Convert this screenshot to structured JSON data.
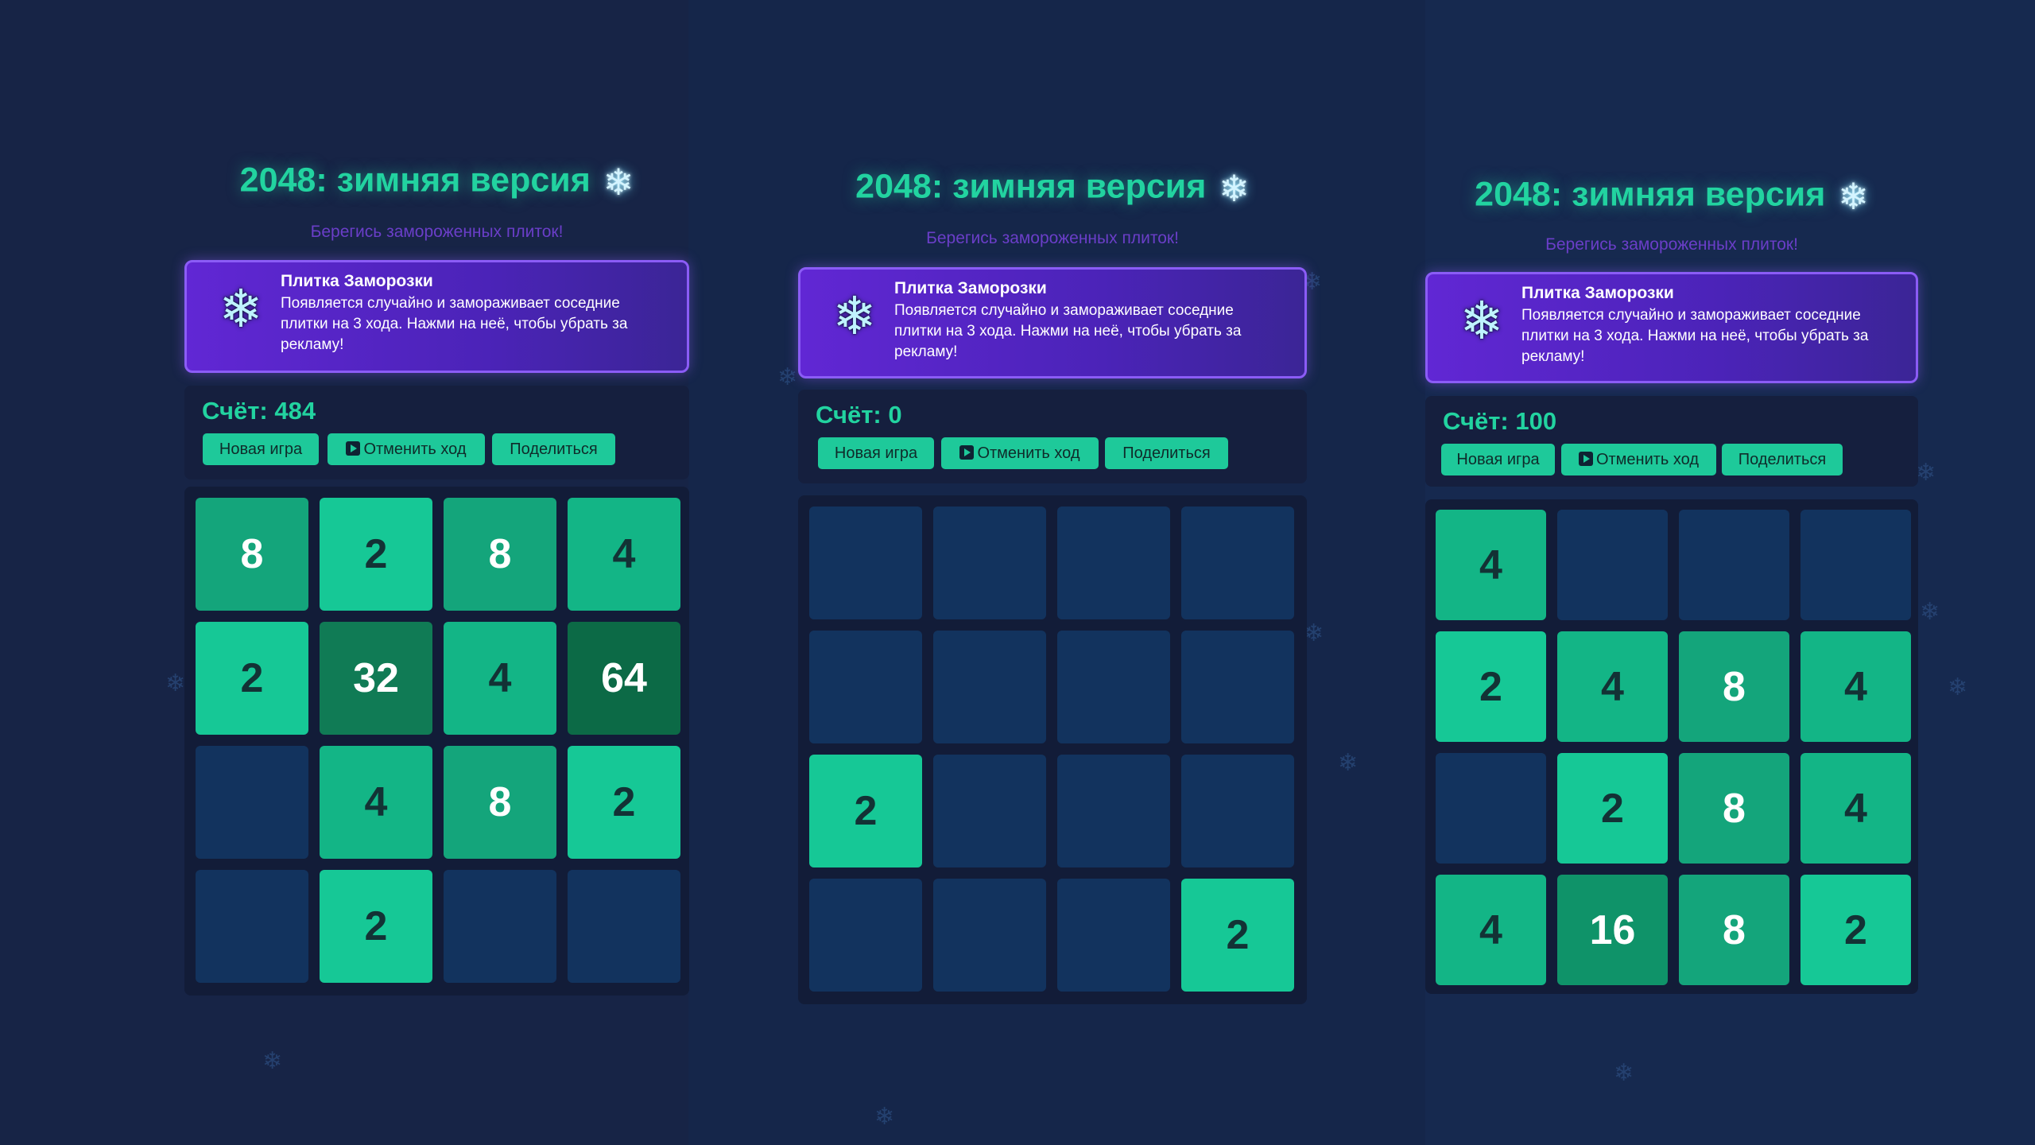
{
  "title": "2048: зимняя версия",
  "title_icon": "snowflake-icon",
  "subtitle": "Берегись замороженных плиток!",
  "promo": {
    "icon": "snowflake-icon",
    "title": "Плитка Заморозки",
    "text": "Появляется случайно и замораживает соседние плитки на 3 хода. Нажми на неё, чтобы убрать за рекламу!"
  },
  "buttons": {
    "new_game": "Новая игра",
    "undo": "Отменить ход",
    "undo_icon": "play-icon",
    "share": "Поделиться"
  },
  "panels": [
    {
      "score": "Счёт: 484",
      "grid": [
        [
          8,
          2,
          8,
          4
        ],
        [
          2,
          32,
          4,
          64
        ],
        [
          0,
          4,
          8,
          2
        ],
        [
          0,
          2,
          0,
          0
        ]
      ]
    },
    {
      "score": "Счёт: 0",
      "grid": [
        [
          0,
          0,
          0,
          0
        ],
        [
          0,
          0,
          0,
          0
        ],
        [
          2,
          0,
          0,
          0
        ],
        [
          0,
          0,
          0,
          2
        ]
      ]
    },
    {
      "score": "Счёт: 100",
      "grid": [
        [
          4,
          0,
          0,
          0
        ],
        [
          2,
          4,
          8,
          4
        ],
        [
          0,
          2,
          8,
          4
        ],
        [
          4,
          16,
          8,
          2
        ]
      ]
    }
  ],
  "colors": {
    "accent": "#22d3a0",
    "promo": "#6127d4",
    "empty_tile": "#12335e"
  }
}
